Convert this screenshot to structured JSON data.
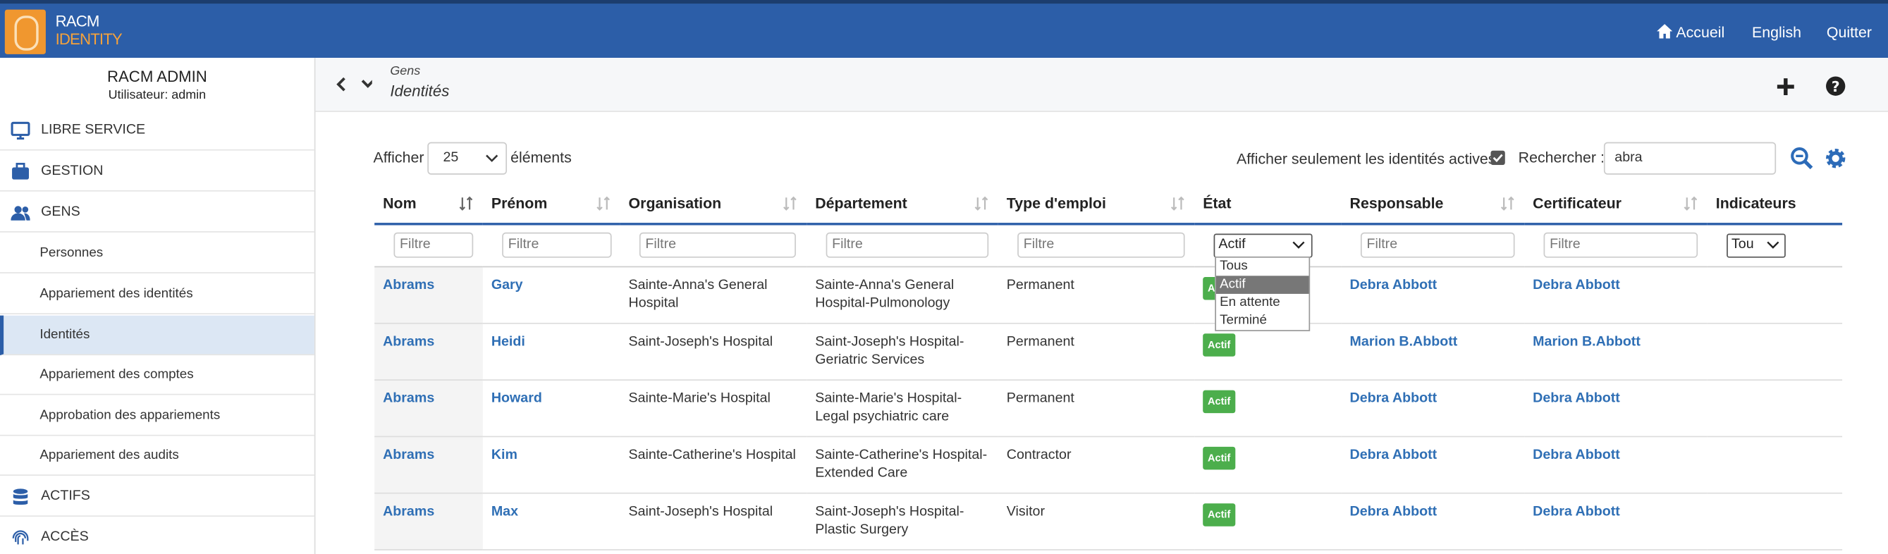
{
  "header": {
    "logo": [
      "RACM",
      "IDENTITY"
    ],
    "nav": [
      "Accueil",
      "English",
      "Quitter"
    ]
  },
  "sidebar": {
    "title": "RACM ADMIN",
    "user": "Utilisateur: admin",
    "menu": [
      {
        "label": "LIBRE SERVICE"
      },
      {
        "label": "GESTION"
      },
      {
        "label": "GENS",
        "items": [
          "Personnes",
          "Appariement des identités",
          "Identités",
          "Appariement des comptes",
          "Approbation des appariements",
          "Appariement des audits"
        ]
      },
      {
        "label": "ACTIFS"
      },
      {
        "label": "ACCÈS"
      }
    ]
  },
  "breadcrumb": {
    "parent": "Gens",
    "current": "Identités"
  },
  "controls": {
    "show": "Afficher",
    "page_size": "25",
    "elements": "éléments",
    "active_only": "Afficher seulement les identités actives",
    "search_label": "Rechercher :",
    "search_value": "abra"
  },
  "table": {
    "columns": [
      "Nom",
      "Prénom",
      "Organisation",
      "Département",
      "Type d'emploi",
      "État",
      "Responsable",
      "Certificateur",
      "Indicateurs"
    ],
    "filter_placeholder": "Filtre",
    "state_filter": "Actif",
    "state_options": [
      "Tous",
      "Actif",
      "En attente",
      "Terminé"
    ],
    "indicator_filter": "Tou",
    "rows": [
      [
        "Abrams",
        "Gary",
        "Sainte-Anna's General Hospital",
        "Sainte-Anna's General Hospital-Pulmonology",
        "Permanent",
        "Actif",
        "Debra Abbott",
        "Debra Abbott"
      ],
      [
        "Abrams",
        "Heidi",
        "Saint-Joseph's Hospital",
        "Saint-Joseph's Hospital-Geriatric Services",
        "Permanent",
        "Actif",
        "Marion B.Abbott",
        "Marion B.Abbott"
      ],
      [
        "Abrams",
        "Howard",
        "Sainte-Marie's Hospital",
        "Sainte-Marie's Hospital-Legal psychiatric care",
        "Permanent",
        "Actif",
        "Debra Abbott",
        "Debra Abbott"
      ],
      [
        "Abrams",
        "Kim",
        "Sainte-Catherine's Hospital",
        "Sainte-Catherine's Hospital-Extended Care",
        "Contractor",
        "Actif",
        "Debra Abbott",
        "Debra Abbott"
      ],
      [
        "Abrams",
        "Max",
        "Saint-Joseph's Hospital",
        "Saint-Joseph's Hospital-Plastic Surgery",
        "Visitor",
        "Actif",
        "Debra Abbott",
        "Debra Abbott"
      ]
    ]
  }
}
